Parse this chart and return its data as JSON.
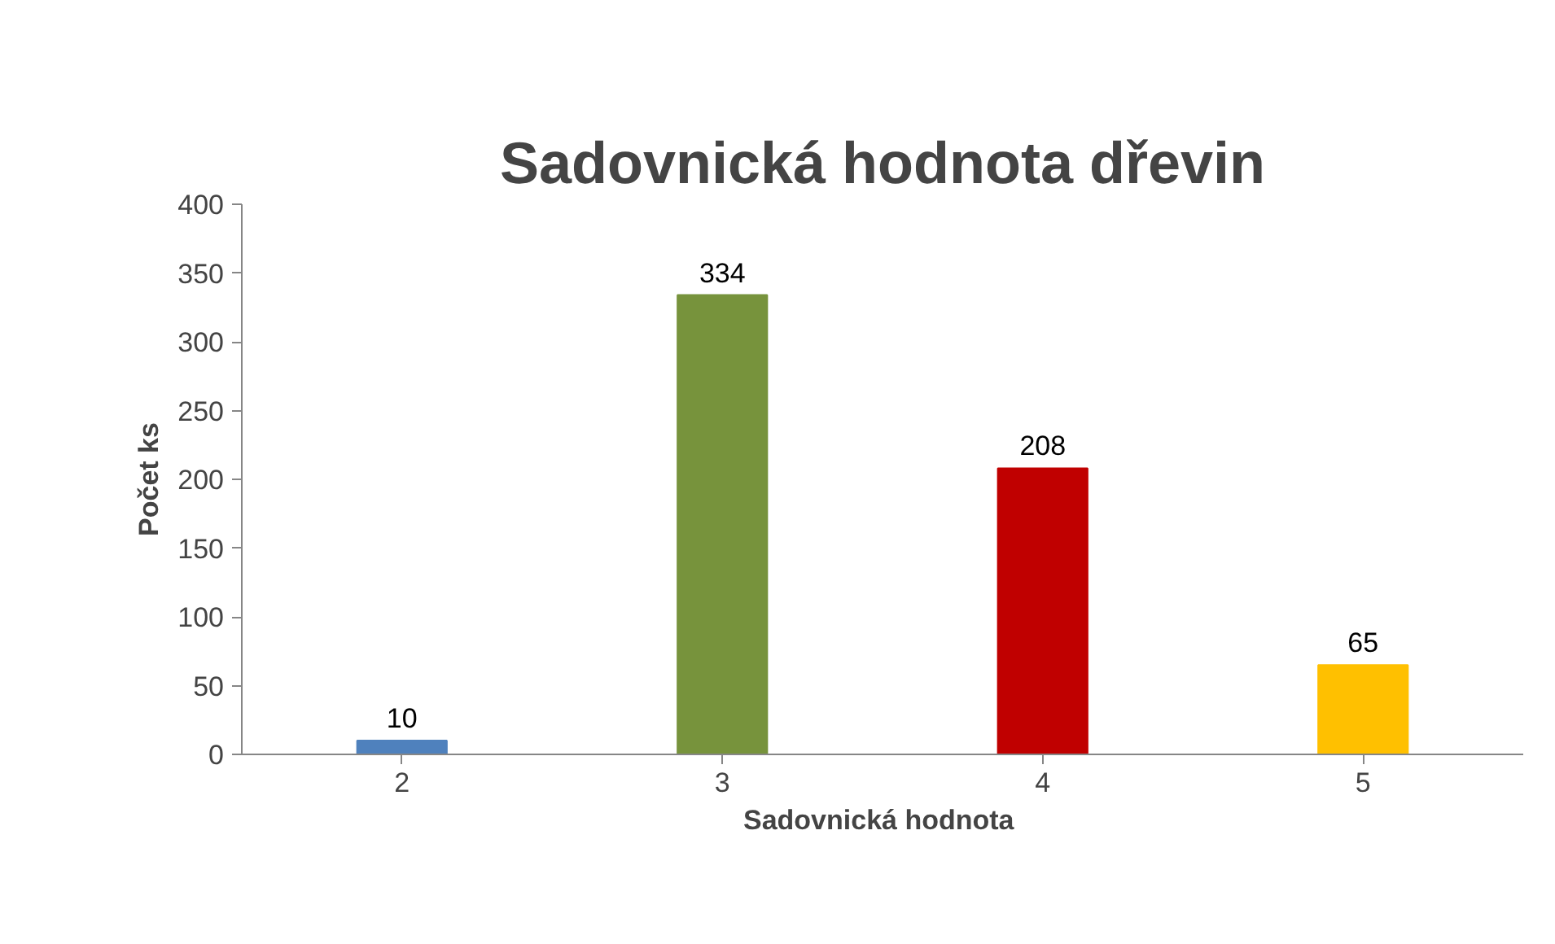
{
  "chart_data": {
    "type": "bar",
    "title": "Sadovnická hodnota dřevin",
    "xlabel": "Sadovnická  hodnota",
    "ylabel": "Počet ks",
    "categories": [
      "2",
      "3",
      "4",
      "5"
    ],
    "values": [
      10,
      334,
      208,
      65
    ],
    "colors": [
      "#4f81bd",
      "#77933c",
      "#c00000",
      "#ffc000"
    ],
    "ylim": [
      0,
      400
    ],
    "yticks": [
      0,
      50,
      100,
      150,
      200,
      250,
      300,
      350,
      400
    ],
    "grid": false,
    "data_labels": true
  }
}
